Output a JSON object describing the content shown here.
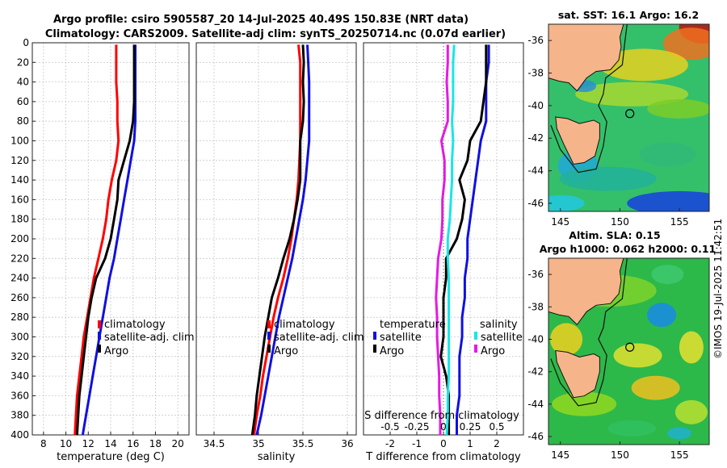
{
  "header": {
    "title_line1": "Argo profile: csiro 5905587_20 14-Jul-2025 40.49S 150.83E (NRT data)",
    "title_line2": "Climatology: CARS2009. Satellite-adj clim: synTS_20250714.nc (0.07d earlier)"
  },
  "map_sst": {
    "title": "sat. SST: 16.1 Argo: 16.2"
  },
  "map_sla": {
    "title_line1": "Altim. SLA: 0.15",
    "title_line2": "Argo h1000: 0.062 h2000: 0.11"
  },
  "watermark": "©IMOS 19-Jul-2025 11:42:51",
  "colors": {
    "climatology": "#ff0000",
    "satellite": "#1010e0",
    "argo": "#000000",
    "sal_sat": "#19e6e6",
    "sal_argo": "#e619e6",
    "land": "#f5b48a"
  },
  "chart_data": [
    {
      "type": "line",
      "xlabel": "temperature (deg C)",
      "ylabel": "",
      "xlim": [
        7,
        21
      ],
      "ylim": [
        400,
        0
      ],
      "xticks": [
        8,
        10,
        12,
        14,
        16,
        18,
        20
      ],
      "xtick_labels": [
        "8",
        "10",
        "12",
        "14",
        "16",
        "18",
        "20"
      ],
      "yticks": [
        0,
        20,
        40,
        60,
        80,
        100,
        120,
        140,
        160,
        180,
        200,
        220,
        240,
        260,
        280,
        300,
        320,
        340,
        360,
        380,
        400
      ],
      "legend": [
        "climatology",
        "satellite-adj. clim",
        "Argo"
      ],
      "series": [
        {
          "name": "climatology",
          "color": "#ff0000",
          "x": [
            14.5,
            14.5,
            14.5,
            14.6,
            14.6,
            14.7,
            14.5,
            14.1,
            13.8,
            13.6,
            13.3,
            12.9,
            12.5,
            12.2,
            11.9,
            11.6,
            11.4,
            11.2,
            11.0,
            10.9,
            10.8
          ],
          "y": [
            2,
            20,
            40,
            60,
            80,
            100,
            120,
            140,
            160,
            180,
            200,
            220,
            240,
            260,
            280,
            300,
            320,
            340,
            360,
            380,
            400
          ]
        },
        {
          "name": "satellite-adj. clim",
          "color": "#1010e0",
          "x": [
            16.2,
            16.2,
            16.2,
            16.2,
            16.2,
            16.1,
            15.8,
            15.5,
            15.2,
            14.9,
            14.6,
            14.3,
            13.9,
            13.6,
            13.3,
            13.0,
            12.7,
            12.4,
            12.1,
            11.8,
            11.5
          ],
          "y": [
            2,
            20,
            40,
            60,
            80,
            100,
            120,
            140,
            160,
            180,
            200,
            220,
            240,
            260,
            280,
            300,
            320,
            340,
            360,
            380,
            400
          ]
        },
        {
          "name": "Argo",
          "color": "#000000",
          "x": [
            16.1,
            16.1,
            16.1,
            16.1,
            16.0,
            15.7,
            15.2,
            14.7,
            14.6,
            14.3,
            14.0,
            13.5,
            12.7,
            12.3,
            12.0,
            11.8,
            11.6,
            11.4,
            11.2,
            11.1,
            11.0
          ],
          "y": [
            2,
            20,
            40,
            60,
            80,
            100,
            120,
            140,
            160,
            180,
            200,
            220,
            240,
            260,
            280,
            300,
            320,
            340,
            360,
            380,
            400
          ]
        }
      ]
    },
    {
      "type": "line",
      "xlabel": "salinity",
      "xlim": [
        34.3,
        36.1
      ],
      "ylim": [
        400,
        0
      ],
      "xticks": [
        34.5,
        35,
        35.5,
        36
      ],
      "xtick_labels": [
        "34.5",
        "35",
        "35.5",
        "36"
      ],
      "legend": [
        "climatology",
        "satellite-adj. clim",
        "Argo"
      ],
      "series": [
        {
          "name": "climatology",
          "color": "#ff0000",
          "x": [
            35.45,
            35.47,
            35.47,
            35.47,
            35.47,
            35.47,
            35.46,
            35.45,
            35.43,
            35.4,
            35.37,
            35.33,
            35.28,
            35.22,
            35.17,
            35.13,
            35.09,
            35.05,
            35.02,
            34.98,
            34.95
          ],
          "y": [
            2,
            20,
            40,
            60,
            80,
            100,
            120,
            140,
            160,
            180,
            200,
            220,
            240,
            260,
            280,
            300,
            320,
            340,
            360,
            380,
            400
          ]
        },
        {
          "name": "satellite-adj. clim",
          "color": "#1010e0",
          "x": [
            35.55,
            35.56,
            35.57,
            35.57,
            35.57,
            35.57,
            35.55,
            35.53,
            35.5,
            35.46,
            35.42,
            35.38,
            35.33,
            35.28,
            35.23,
            35.19,
            35.15,
            35.11,
            35.07,
            35.03,
            34.98
          ],
          "y": [
            2,
            20,
            40,
            60,
            80,
            100,
            120,
            140,
            160,
            180,
            200,
            220,
            240,
            260,
            280,
            300,
            320,
            340,
            360,
            380,
            400
          ]
        },
        {
          "name": "Argo",
          "color": "#000000",
          "x": [
            35.5,
            35.51,
            35.5,
            35.51,
            35.5,
            35.47,
            35.47,
            35.47,
            35.44,
            35.4,
            35.35,
            35.28,
            35.22,
            35.15,
            35.11,
            35.07,
            35.04,
            35.01,
            34.98,
            34.96,
            34.93
          ],
          "y": [
            2,
            20,
            40,
            60,
            80,
            100,
            120,
            140,
            160,
            180,
            200,
            220,
            240,
            260,
            280,
            300,
            320,
            340,
            360,
            380,
            400
          ]
        }
      ]
    },
    {
      "type": "line",
      "xlabel": "T difference from climatology",
      "xlabel_top": "S difference from climatology",
      "xlim": [
        -3,
        3
      ],
      "ylim": [
        400,
        0
      ],
      "xticks": [
        -2,
        -1,
        0,
        1,
        2
      ],
      "xtick_labels": [
        "-2",
        "-1",
        "0",
        "1",
        "2"
      ],
      "s_xticks": [
        -0.5,
        -0.25,
        0,
        0.25,
        0.5
      ],
      "s_xtick_labels": [
        "-0.5",
        "-0.25",
        "0",
        "0.25",
        "0.5"
      ],
      "s_xlim": [
        -0.75,
        0.75
      ],
      "legend_temperature_title": "temperature",
      "legend_salinity_title": "salinity",
      "legend_temperature": [
        "satellite",
        "Argo"
      ],
      "legend_salinity": [
        "satellite",
        "Argo"
      ],
      "series": [
        {
          "name": "T satellite",
          "color": "#1010e0",
          "x": [
            1.7,
            1.7,
            1.6,
            1.6,
            1.6,
            1.4,
            1.3,
            1.2,
            1.1,
            1.0,
            0.9,
            0.9,
            0.8,
            0.8,
            0.7,
            0.7,
            0.6,
            0.6,
            0.6,
            0.5,
            0.5
          ],
          "y": [
            2,
            20,
            40,
            60,
            80,
            100,
            120,
            140,
            160,
            180,
            200,
            220,
            240,
            260,
            280,
            300,
            320,
            340,
            360,
            380,
            400
          ]
        },
        {
          "name": "T Argo",
          "color": "#000000",
          "x": [
            1.6,
            1.6,
            1.6,
            1.5,
            1.4,
            1.0,
            0.9,
            0.6,
            0.8,
            0.7,
            0.5,
            0.1,
            0.1,
            0.0,
            0.0,
            0.0,
            -0.1,
            0.1,
            0.2,
            0.2,
            0.2
          ],
          "y": [
            2,
            20,
            40,
            60,
            80,
            100,
            120,
            140,
            160,
            180,
            200,
            220,
            240,
            260,
            280,
            300,
            320,
            340,
            360,
            380,
            400
          ]
        },
        {
          "name": "S satellite",
          "color": "#19e6e6",
          "x": [
            0.1,
            0.09,
            0.09,
            0.09,
            0.08,
            0.09,
            0.08,
            0.08,
            0.07,
            0.06,
            0.04,
            0.04,
            0.05,
            0.05,
            0.05,
            0.05,
            0.05,
            0.05,
            0.04,
            0.04,
            0.03
          ],
          "y": [
            2,
            20,
            40,
            60,
            80,
            100,
            120,
            140,
            160,
            180,
            200,
            220,
            240,
            260,
            280,
            300,
            320,
            340,
            360,
            380,
            400
          ]
        },
        {
          "name": "S Argo",
          "color": "#e619e6",
          "x": [
            0.04,
            0.04,
            0.03,
            0.04,
            0.04,
            -0.02,
            0.01,
            0.01,
            -0.01,
            -0.01,
            -0.02,
            -0.05,
            -0.06,
            -0.07,
            -0.06,
            -0.06,
            -0.05,
            -0.04,
            -0.04,
            -0.03,
            -0.03
          ],
          "y": [
            2,
            20,
            40,
            60,
            80,
            100,
            120,
            140,
            160,
            180,
            200,
            220,
            240,
            260,
            280,
            300,
            320,
            340,
            360,
            380,
            400
          ]
        }
      ]
    },
    {
      "type": "heatmap",
      "title": "sat. SST: 16.1 Argo: 16.2",
      "xlim": [
        144,
        157.5
      ],
      "ylim": [
        -46.5,
        -35
      ],
      "xticks": [
        145,
        150,
        155
      ],
      "xtick_labels": [
        "145",
        "150",
        "155"
      ],
      "yticks": [
        -36,
        -38,
        -40,
        -42,
        -44,
        -46
      ],
      "ytick_labels": [
        "-36",
        "-38",
        "-40",
        "-42",
        "-44",
        "-46"
      ],
      "argo_position": {
        "lon": 150.83,
        "lat": -40.49
      }
    },
    {
      "type": "heatmap",
      "title": "Altim. SLA: 0.15",
      "xlim": [
        144,
        157.5
      ],
      "ylim": [
        -46.5,
        -35
      ],
      "xticks": [
        145,
        150,
        155
      ],
      "xtick_labels": [
        "145",
        "150",
        "155"
      ],
      "yticks": [
        -36,
        -38,
        -40,
        -42,
        -44,
        -46
      ],
      "ytick_labels": [
        "-36",
        "-38",
        "-40",
        "-42",
        "-44",
        "-46"
      ],
      "argo_position": {
        "lon": 150.83,
        "lat": -40.49
      }
    }
  ]
}
